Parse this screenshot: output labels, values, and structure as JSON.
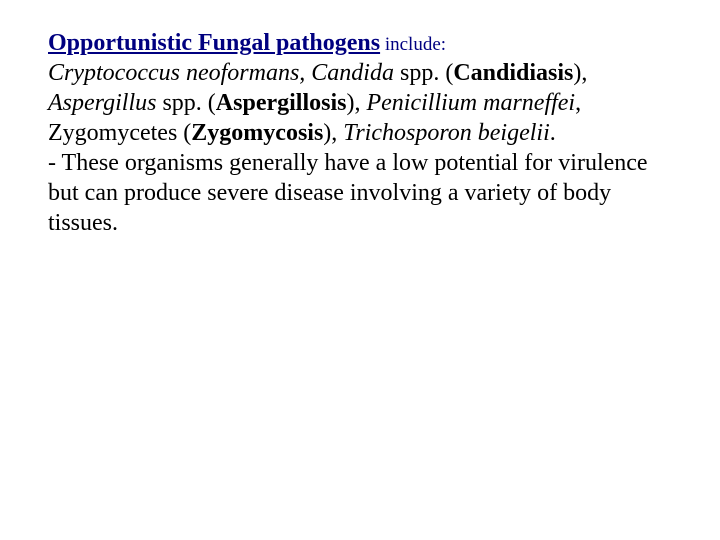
{
  "colors": {
    "heading_color": "#000080",
    "body_color": "#000000",
    "background": "#ffffff"
  },
  "typography": {
    "font_family": "Times New Roman",
    "heading_fontsize": 24,
    "body_fontsize": 24,
    "include_fontsize": 19
  },
  "heading": {
    "title": "Opportunistic Fungal pathogens",
    "suffix": " include:"
  },
  "content": {
    "t1": "Cryptococcus neoformans, Candida",
    "t2": " spp. ",
    "t3": "(",
    "t4": "Candidiasis",
    "t5": "), ",
    "t6": "Aspergillus",
    "t7": " spp. (",
    "t8": "Aspergillosis",
    "t9": "), ",
    "t10": "Penicillium marneffei",
    "t11": ", Zygomycetes (",
    "t12": "Zygomycosis",
    "t13": "), ",
    "t14": "Trichosporon beigelii",
    "t15": ".",
    "note": "- These organisms generally have a low potential for virulence but can produce severe disease involving a variety of body tissues."
  }
}
